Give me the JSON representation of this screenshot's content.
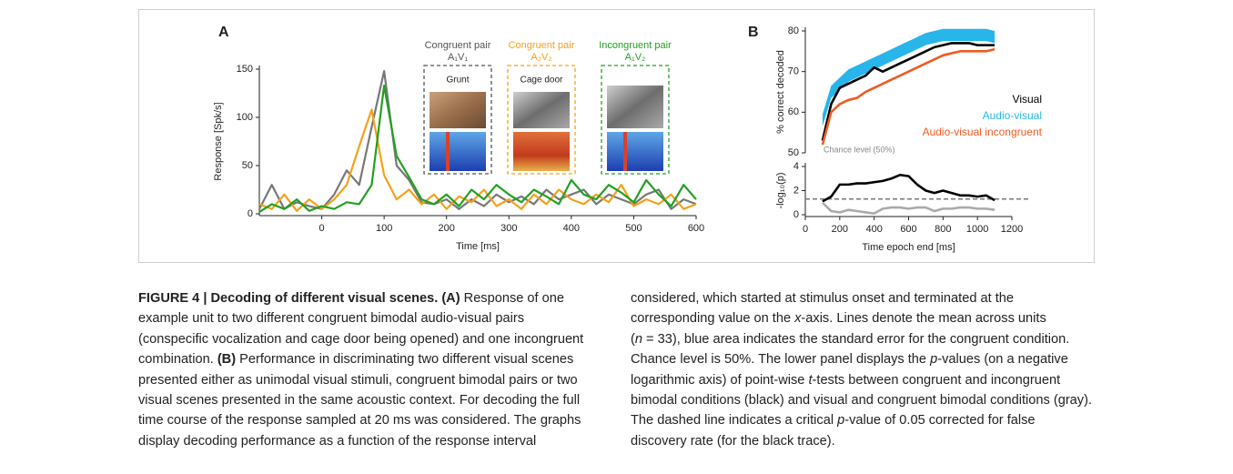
{
  "chart_data": [
    {
      "type": "line",
      "label": "A",
      "xlabel": "Time [ms]",
      "ylabel": "Response [Spk/s]",
      "xlim": [
        -100,
        600
      ],
      "xticks": [
        0,
        100,
        200,
        300,
        400,
        500,
        600
      ],
      "ylim": [
        0,
        150
      ],
      "yticks": [
        0,
        50,
        100,
        150
      ],
      "x": [
        -100,
        -80,
        -60,
        -40,
        -20,
        0,
        20,
        40,
        60,
        80,
        100,
        120,
        140,
        160,
        180,
        200,
        220,
        240,
        260,
        280,
        300,
        320,
        340,
        360,
        380,
        400,
        420,
        440,
        460,
        480,
        500,
        520,
        540,
        560,
        580,
        600
      ],
      "series": [
        {
          "color": "#777777",
          "values": [
            5,
            30,
            5,
            12,
            8,
            5,
            20,
            45,
            30,
            90,
            148,
            50,
            35,
            12,
            10,
            15,
            5,
            15,
            8,
            20,
            12,
            18,
            10,
            25,
            15,
            20,
            25,
            10,
            20,
            15,
            10,
            20,
            25,
            5,
            15,
            10
          ]
        },
        {
          "color": "#f5a01a",
          "values": [
            10,
            5,
            20,
            3,
            15,
            5,
            15,
            30,
            70,
            108,
            40,
            15,
            25,
            10,
            20,
            5,
            18,
            12,
            25,
            8,
            15,
            5,
            20,
            10,
            25,
            15,
            10,
            20,
            12,
            30,
            8,
            15,
            10,
            20,
            5,
            10
          ]
        },
        {
          "color": "#22a022",
          "values": [
            2,
            10,
            5,
            15,
            3,
            8,
            5,
            12,
            10,
            30,
            133,
            60,
            38,
            15,
            10,
            20,
            8,
            25,
            15,
            30,
            20,
            12,
            25,
            18,
            10,
            35,
            20,
            15,
            30,
            22,
            12,
            35,
            20,
            8,
            30,
            15
          ]
        }
      ],
      "pairs": [
        {
          "title": "Congruent pair",
          "label": "A₁V₁",
          "caption": "Grunt",
          "color": "#555555"
        },
        {
          "title": "Congruent pair",
          "label": "A₂V₂",
          "caption": "Cage door",
          "color": "#f5a01a"
        },
        {
          "title": "Incongruent pair",
          "label": "A₁V₂",
          "color": "#22a022"
        }
      ]
    },
    {
      "type": "line",
      "label": "B",
      "ylabel": "% correct decoded",
      "annotation": "Chance level (50%)",
      "legend": "right",
      "xlim": [
        0,
        1200
      ],
      "ylim": [
        50,
        80
      ],
      "yticks": [
        50,
        60,
        70,
        80
      ],
      "x": [
        100,
        150,
        200,
        250,
        300,
        350,
        400,
        450,
        500,
        550,
        600,
        650,
        700,
        750,
        800,
        850,
        900,
        950,
        1000,
        1050,
        1100
      ],
      "series": [
        {
          "name": "Visual",
          "color": "#000000",
          "values": [
            53,
            62,
            66,
            67,
            68,
            69,
            71,
            70,
            71,
            72,
            73,
            74,
            75,
            76,
            76.5,
            77,
            77,
            77,
            76.5,
            76.5,
            76.5
          ]
        },
        {
          "name": "Audio-visual",
          "color": "#27b5ea",
          "values": [
            58,
            65,
            67,
            69,
            70,
            71,
            72,
            73,
            74,
            75,
            76,
            77,
            78,
            78.5,
            79,
            79,
            79,
            79,
            79,
            79,
            78.5
          ],
          "errors": [
            1.5,
            1.5,
            1.5,
            1.5,
            1.5,
            1.5,
            1.5,
            1.5,
            1.5,
            1.5,
            1.5,
            1.5,
            1.5,
            1.5,
            1.5,
            1.5,
            1.5,
            1.5,
            1.5,
            1.5,
            1.5
          ]
        },
        {
          "name": "Audio-visual incongruent",
          "color": "#f05a22",
          "values": [
            52,
            60,
            62,
            63,
            63.5,
            65,
            66,
            67,
            68,
            69,
            70,
            71,
            72,
            73,
            74,
            74.5,
            75,
            75,
            75,
            75,
            75.5
          ]
        }
      ]
    },
    {
      "type": "line",
      "xlabel": "Time epoch end [ms]",
      "ylabel": "-log₁₀(p)",
      "hline": 1.3,
      "xlim": [
        0,
        1200
      ],
      "xticks": [
        0,
        200,
        400,
        600,
        800,
        1000,
        1200
      ],
      "ylim": [
        0,
        4
      ],
      "yticks": [
        0,
        2,
        4
      ],
      "x": [
        100,
        150,
        200,
        250,
        300,
        350,
        400,
        450,
        500,
        550,
        600,
        650,
        700,
        750,
        800,
        850,
        900,
        950,
        1000,
        1050,
        1100
      ],
      "series": [
        {
          "color": "#000000",
          "values": [
            1.1,
            1.5,
            2.5,
            2.5,
            2.6,
            2.6,
            2.7,
            2.8,
            3.0,
            3.3,
            3.2,
            2.5,
            2.0,
            1.8,
            2.0,
            1.8,
            1.6,
            1.6,
            1.5,
            1.6,
            1.2
          ]
        },
        {
          "color": "#aaaaaa",
          "values": [
            1.0,
            0.3,
            0.2,
            0.4,
            0.3,
            0.2,
            0.1,
            0.5,
            0.6,
            0.6,
            0.5,
            0.6,
            0.6,
            0.3,
            0.5,
            0.5,
            0.6,
            0.6,
            0.5,
            0.5,
            0.4
          ]
        }
      ]
    }
  ],
  "caption": {
    "left": [
      [
        {
          "text": "FIGURE 4 | Decoding of different visual scenes. (A)",
          "style": "bold"
        },
        " Response of one"
      ],
      [
        "example unit to two different congruent bimodal audio-visual pairs"
      ],
      [
        "(conspecific vocalization and cage door being opened) and one incongruent"
      ],
      [
        "combination. ",
        {
          "text": "(B)",
          "style": "bold"
        },
        " Performance in discriminating two different visual scenes"
      ],
      [
        "presented either as unimodal visual stimuli, congruent bimodal pairs or two"
      ],
      [
        "visual scenes presented in the same acoustic context. For decoding the full"
      ],
      [
        "time course of the response sampled at 20 ms was considered. The graphs"
      ],
      [
        "display decoding performance as a function of the response interval"
      ]
    ],
    "right": [
      [
        "considered, which started at stimulus onset and terminated at the"
      ],
      [
        "corresponding value on the ",
        {
          "text": "x",
          "style": "italic"
        },
        "-axis. Lines denote the mean across units"
      ],
      [
        "(",
        {
          "text": "n",
          "style": "italic"
        },
        " = 33), blue area indicates the standard error for the congruent condition."
      ],
      [
        "Chance level is 50%. The lower panel displays the ",
        {
          "text": "p",
          "style": "italic"
        },
        "-values (on a negative"
      ],
      [
        "logarithmic axis) of point-wise ",
        {
          "text": "t",
          "style": "italic"
        },
        "-tests between congruent and incongruent"
      ],
      [
        "bimodal conditions (black) and visual and congruent bimodal conditions (gray)."
      ],
      [
        "The dashed line indicates a critical ",
        {
          "text": "p",
          "style": "italic"
        },
        "-value of 0.05 corrected for false"
      ],
      [
        "discovery rate (for the black trace)."
      ]
    ]
  }
}
